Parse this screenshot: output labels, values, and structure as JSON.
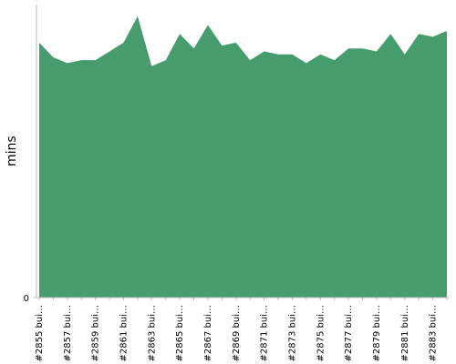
{
  "chart_data": {
    "type": "area",
    "y_label": "mins",
    "categories": [
      "#2855 bui…",
      null,
      "#2857 bui…",
      null,
      "#2859 bui…",
      null,
      "#2861 bui…",
      null,
      "#2863 bui…",
      null,
      "#2865 bui…",
      null,
      "#2867 bui…",
      null,
      "#2869 bui…",
      null,
      "#2871 bui…",
      null,
      "#2873 bui…",
      null,
      "#2875 bui…",
      null,
      "#2877 bui…",
      null,
      "#2879 bui…",
      null,
      "#2881 bui…",
      null,
      "#2883 bui…",
      null
    ],
    "values": [
      8.7,
      8.2,
      8.0,
      8.1,
      8.1,
      8.4,
      8.7,
      9.6,
      7.9,
      8.1,
      9.0,
      8.5,
      9.3,
      8.6,
      8.7,
      8.1,
      8.4,
      8.3,
      8.3,
      8.0,
      8.3,
      8.1,
      8.5,
      8.5,
      8.4,
      9.0,
      8.3,
      9.0,
      8.9,
      9.1
    ],
    "color": "#469c6d",
    "ylim": [
      0,
      10
    ],
    "yticks": [
      0
    ]
  }
}
